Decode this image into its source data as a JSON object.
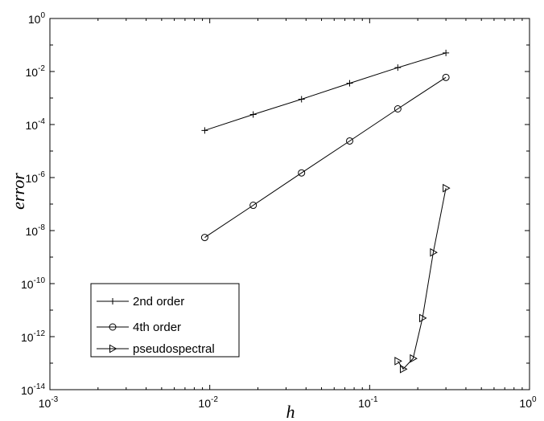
{
  "chart_data": {
    "type": "line",
    "title": "",
    "xlabel": "h",
    "ylabel": "error",
    "xscale": "log",
    "yscale": "log",
    "xlim": [
      0.001,
      1
    ],
    "ylim": [
      1e-14,
      1
    ],
    "grid": false,
    "legend_position": "bottom-left",
    "x_ticks": [
      {
        "base": "10",
        "exp": "-3",
        "value": 0.001
      },
      {
        "base": "10",
        "exp": "-2",
        "value": 0.01
      },
      {
        "base": "10",
        "exp": "-1",
        "value": 0.1
      },
      {
        "base": "10",
        "exp": "0",
        "value": 1
      }
    ],
    "y_ticks": [
      {
        "base": "10",
        "exp": "0",
        "value": 1
      },
      {
        "base": "10",
        "exp": "-2",
        "value": 0.01
      },
      {
        "base": "10",
        "exp": "-4",
        "value": 0.0001
      },
      {
        "base": "10",
        "exp": "-6",
        "value": 1e-06
      },
      {
        "base": "10",
        "exp": "-8",
        "value": 1e-08
      },
      {
        "base": "10",
        "exp": "-10",
        "value": 1e-10
      },
      {
        "base": "10",
        "exp": "-12",
        "value": 1e-12
      },
      {
        "base": "10",
        "exp": "-14",
        "value": 1e-14
      }
    ],
    "series": [
      {
        "name": "2nd order",
        "marker": "plus",
        "points": [
          {
            "x": 0.0093,
            "y": 6e-05
          },
          {
            "x": 0.0187,
            "y": 0.00024
          },
          {
            "x": 0.0375,
            "y": 0.0009
          },
          {
            "x": 0.075,
            "y": 0.0036
          },
          {
            "x": 0.15,
            "y": 0.014
          },
          {
            "x": 0.3,
            "y": 0.05
          }
        ]
      },
      {
        "name": "4th order",
        "marker": "circle",
        "points": [
          {
            "x": 0.0093,
            "y": 5.5e-09
          },
          {
            "x": 0.0187,
            "y": 9e-08
          },
          {
            "x": 0.0375,
            "y": 1.5e-06
          },
          {
            "x": 0.075,
            "y": 2.4e-05
          },
          {
            "x": 0.15,
            "y": 0.00039
          },
          {
            "x": 0.3,
            "y": 0.006
          }
        ]
      },
      {
        "name": "pseudospectral",
        "marker": "triangle-right",
        "points": [
          {
            "x": 0.15,
            "y": 1.2e-13
          },
          {
            "x": 0.162,
            "y": 6e-14
          },
          {
            "x": 0.187,
            "y": 1.5e-13
          },
          {
            "x": 0.214,
            "y": 5e-12
          },
          {
            "x": 0.25,
            "y": 1.5e-09
          },
          {
            "x": 0.3,
            "y": 4e-07
          }
        ]
      }
    ]
  }
}
